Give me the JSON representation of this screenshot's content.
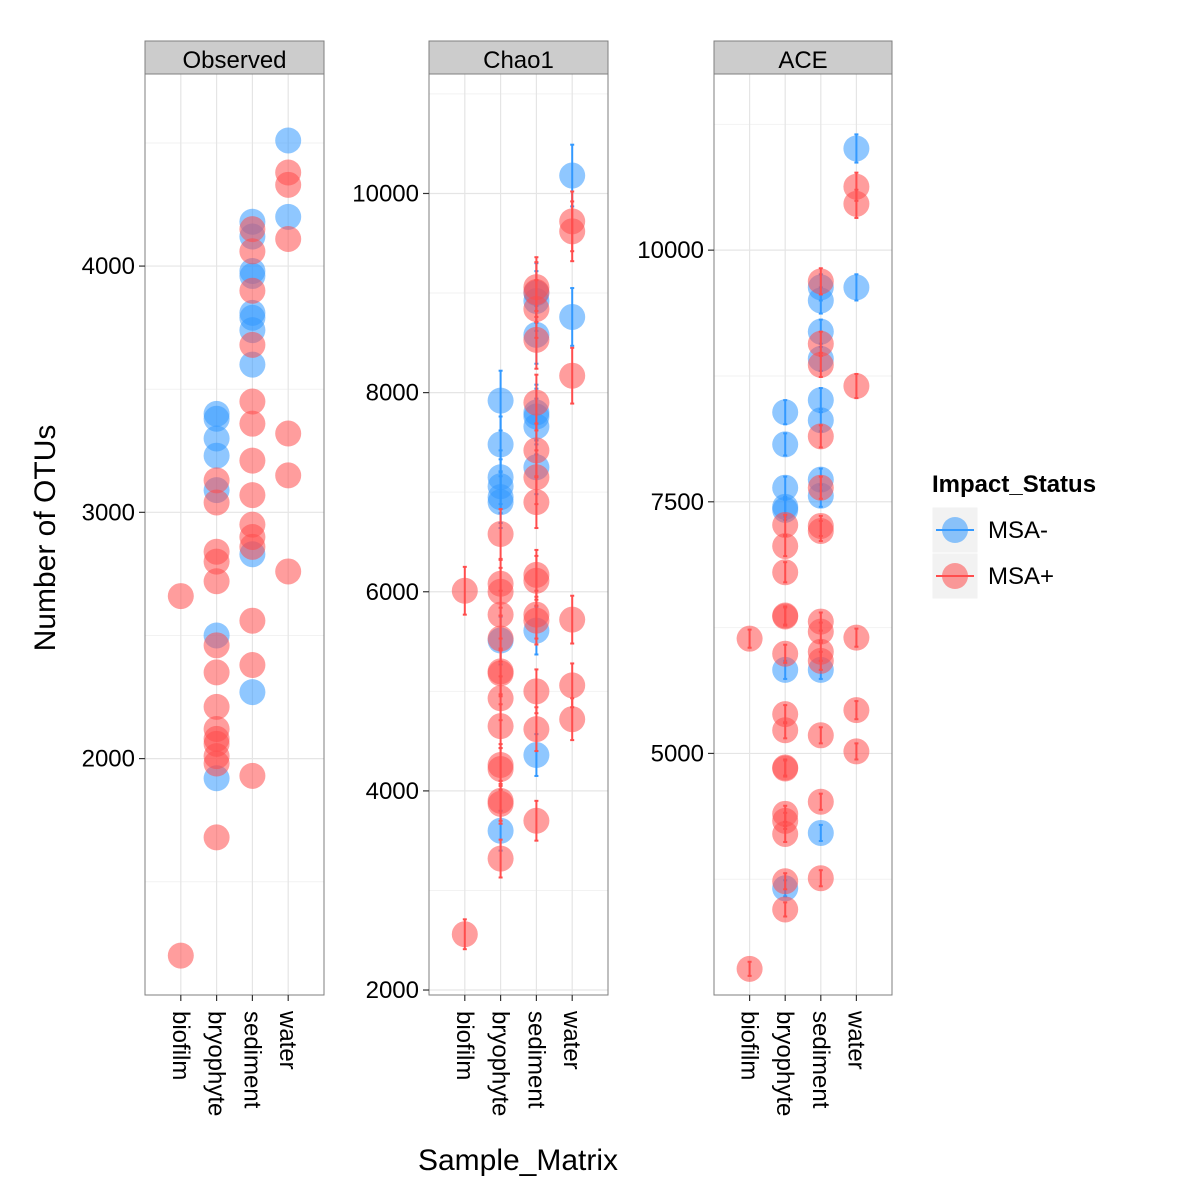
{
  "chart_data": {
    "type": "scatter",
    "xlabel": "Sample_Matrix",
    "ylabel": "Number of OTUs",
    "categories": [
      "biofilm",
      "bryophyte",
      "sediment",
      "water"
    ],
    "legend": {
      "title": "Impact_Status",
      "position": "right",
      "entries": [
        {
          "name": "MSA-",
          "color": "#3399FF"
        },
        {
          "name": "MSA+",
          "color": "#FF4D4D"
        }
      ]
    },
    "colors": {
      "MSA-": "#3399FF",
      "MSA+": "#FF4D4D"
    },
    "grid": true,
    "panels": [
      {
        "name": "Observed",
        "ylim": [
          1040,
          4780
        ],
        "yticks": [
          2000,
          3000,
          4000
        ],
        "ytick_labels": [
          "2000",
          "3000",
          "4000"
        ],
        "series": [
          {
            "name": "MSA-",
            "points": [
              [
                "bryophyte",
                3400
              ],
              [
                "bryophyte",
                3380
              ],
              [
                "bryophyte",
                3300
              ],
              [
                "bryophyte",
                3230
              ],
              [
                "bryophyte",
                3090
              ],
              [
                "bryophyte",
                2500
              ],
              [
                "bryophyte",
                1920
              ],
              [
                "sediment",
                4180
              ],
              [
                "sediment",
                4120
              ],
              [
                "sediment",
                3980
              ],
              [
                "sediment",
                3960
              ],
              [
                "sediment",
                3810
              ],
              [
                "sediment",
                3790
              ],
              [
                "sediment",
                3740
              ],
              [
                "sediment",
                3600
              ],
              [
                "sediment",
                2830
              ],
              [
                "sediment",
                2270
              ],
              [
                "water",
                4510
              ],
              [
                "water",
                4200
              ]
            ]
          },
          {
            "name": "MSA+",
            "points": [
              [
                "biofilm",
                2660
              ],
              [
                "biofilm",
                1200
              ],
              [
                "bryophyte",
                3130
              ],
              [
                "bryophyte",
                3040
              ],
              [
                "bryophyte",
                2840
              ],
              [
                "bryophyte",
                2800
              ],
              [
                "bryophyte",
                2720
              ],
              [
                "bryophyte",
                2460
              ],
              [
                "bryophyte",
                2350
              ],
              [
                "bryophyte",
                2210
              ],
              [
                "bryophyte",
                2120
              ],
              [
                "bryophyte",
                2080
              ],
              [
                "bryophyte",
                2060
              ],
              [
                "bryophyte",
                2010
              ],
              [
                "bryophyte",
                1980
              ],
              [
                "bryophyte",
                1680
              ],
              [
                "sediment",
                4150
              ],
              [
                "sediment",
                4060
              ],
              [
                "sediment",
                3900
              ],
              [
                "sediment",
                3680
              ],
              [
                "sediment",
                3450
              ],
              [
                "sediment",
                3360
              ],
              [
                "sediment",
                3210
              ],
              [
                "sediment",
                3070
              ],
              [
                "sediment",
                2950
              ],
              [
                "sediment",
                2900
              ],
              [
                "sediment",
                2860
              ],
              [
                "sediment",
                2560
              ],
              [
                "sediment",
                2380
              ],
              [
                "sediment",
                1930
              ],
              [
                "water",
                4380
              ],
              [
                "water",
                4330
              ],
              [
                "water",
                4110
              ],
              [
                "water",
                3320
              ],
              [
                "water",
                3150
              ],
              [
                "water",
                2760
              ]
            ]
          }
        ]
      },
      {
        "name": "Chao1",
        "ylim": [
          1950,
          11200
        ],
        "yticks": [
          2000,
          4000,
          6000,
          8000,
          10000
        ],
        "ytick_labels": [
          "2000",
          "4000",
          "6000",
          "8000",
          "10000"
        ],
        "series": [
          {
            "name": "MSA-",
            "points": [
              [
                "bryophyte",
                7920,
                300
              ],
              [
                "bryophyte",
                7480,
                280
              ],
              [
                "bryophyte",
                7150,
                270
              ],
              [
                "bryophyte",
                7060,
                270
              ],
              [
                "bryophyte",
                6950,
                260
              ],
              [
                "bryophyte",
                6900,
                260
              ],
              [
                "bryophyte",
                5510,
                240
              ],
              [
                "bryophyte",
                3600,
                200
              ],
              [
                "sediment",
                9000,
                300
              ],
              [
                "sediment",
                8920,
                300
              ],
              [
                "sediment",
                8580,
                290
              ],
              [
                "sediment",
                7800,
                280
              ],
              [
                "sediment",
                7760,
                280
              ],
              [
                "sediment",
                7660,
                280
              ],
              [
                "sediment",
                7250,
                270
              ],
              [
                "sediment",
                5610,
                240
              ],
              [
                "sediment",
                4360,
                210
              ],
              [
                "water",
                10180,
                310
              ],
              [
                "water",
                8760,
                290
              ]
            ]
          },
          {
            "name": "MSA+",
            "points": [
              [
                "biofilm",
                6010,
                240
              ],
              [
                "biofilm",
                2560,
                150
              ],
              [
                "bryophyte",
                6580,
                250
              ],
              [
                "bryophyte",
                6080,
                240
              ],
              [
                "bryophyte",
                6000,
                240
              ],
              [
                "bryophyte",
                5770,
                240
              ],
              [
                "bryophyte",
                5530,
                230
              ],
              [
                "bryophyte",
                5200,
                230
              ],
              [
                "bryophyte",
                5180,
                230
              ],
              [
                "bryophyte",
                4930,
                220
              ],
              [
                "bryophyte",
                4650,
                220
              ],
              [
                "bryophyte",
                4260,
                210
              ],
              [
                "bryophyte",
                4220,
                210
              ],
              [
                "bryophyte",
                3900,
                200
              ],
              [
                "bryophyte",
                3870,
                200
              ],
              [
                "bryophyte",
                3320,
                190
              ],
              [
                "sediment",
                9060,
                300
              ],
              [
                "sediment",
                9010,
                300
              ],
              [
                "sediment",
                8840,
                290
              ],
              [
                "sediment",
                8530,
                290
              ],
              [
                "sediment",
                7900,
                280
              ],
              [
                "sediment",
                7420,
                270
              ],
              [
                "sediment",
                7150,
                270
              ],
              [
                "sediment",
                6900,
                260
              ],
              [
                "sediment",
                6170,
                250
              ],
              [
                "sediment",
                6110,
                250
              ],
              [
                "sediment",
                5770,
                240
              ],
              [
                "sediment",
                5710,
                240
              ],
              [
                "sediment",
                5000,
                220
              ],
              [
                "sediment",
                4620,
                220
              ],
              [
                "sediment",
                3700,
                200
              ],
              [
                "water",
                9720,
                300
              ],
              [
                "water",
                9620,
                300
              ],
              [
                "water",
                8170,
                280
              ],
              [
                "water",
                5720,
                240
              ],
              [
                "water",
                5060,
                220
              ],
              [
                "water",
                4720,
                210
              ]
            ]
          }
        ]
      },
      {
        "name": "ACE",
        "ylim": [
          2600,
          11750
        ],
        "yticks": [
          5000,
          7500,
          10000
        ],
        "ytick_labels": [
          "5000",
          "7500",
          "10000"
        ],
        "series": [
          {
            "name": "MSA-",
            "points": [
              [
                "bryophyte",
                8390,
                120
              ],
              [
                "bryophyte",
                8070,
                110
              ],
              [
                "bryophyte",
                7640,
                110
              ],
              [
                "bryophyte",
                7450,
                100
              ],
              [
                "bryophyte",
                7420,
                100
              ],
              [
                "bryophyte",
                5830,
                90
              ],
              [
                "bryophyte",
                3660,
                80
              ],
              [
                "sediment",
                9630,
                130
              ],
              [
                "sediment",
                9500,
                130
              ],
              [
                "sediment",
                9190,
                120
              ],
              [
                "sediment",
                8920,
                120
              ],
              [
                "sediment",
                8510,
                120
              ],
              [
                "sediment",
                8310,
                110
              ],
              [
                "sediment",
                7720,
                110
              ],
              [
                "sediment",
                7560,
                110
              ],
              [
                "sediment",
                5830,
                90
              ],
              [
                "sediment",
                4210,
                80
              ],
              [
                "water",
                11010,
                140
              ],
              [
                "water",
                9630,
                130
              ]
            ]
          },
          {
            "name": "MSA+",
            "points": [
              [
                "biofilm",
                6140,
                90
              ],
              [
                "biofilm",
                2860,
                70
              ],
              [
                "bryophyte",
                7270,
                100
              ],
              [
                "bryophyte",
                7060,
                100
              ],
              [
                "bryophyte",
                6800,
                100
              ],
              [
                "bryophyte",
                6370,
                90
              ],
              [
                "bryophyte",
                6360,
                90
              ],
              [
                "bryophyte",
                5990,
                90
              ],
              [
                "bryophyte",
                5390,
                90
              ],
              [
                "bryophyte",
                5230,
                80
              ],
              [
                "bryophyte",
                4860,
                80
              ],
              [
                "bryophyte",
                4850,
                80
              ],
              [
                "bryophyte",
                4400,
                80
              ],
              [
                "bryophyte",
                4330,
                80
              ],
              [
                "bryophyte",
                4200,
                80
              ],
              [
                "bryophyte",
                3730,
                80
              ],
              [
                "bryophyte",
                3450,
                70
              ],
              [
                "sediment",
                9690,
                130
              ],
              [
                "sediment",
                9070,
                120
              ],
              [
                "sediment",
                8860,
                120
              ],
              [
                "sediment",
                8150,
                110
              ],
              [
                "sediment",
                7640,
                110
              ],
              [
                "sediment",
                7260,
                100
              ],
              [
                "sediment",
                7210,
                100
              ],
              [
                "sediment",
                6310,
                90
              ],
              [
                "sediment",
                6210,
                90
              ],
              [
                "sediment",
                6010,
                90
              ],
              [
                "sediment",
                5920,
                90
              ],
              [
                "sediment",
                5180,
                80
              ],
              [
                "sediment",
                4520,
                80
              ],
              [
                "sediment",
                3760,
                80
              ],
              [
                "water",
                10630,
                140
              ],
              [
                "water",
                10460,
                140
              ],
              [
                "water",
                8650,
                120
              ],
              [
                "water",
                6150,
                90
              ],
              [
                "water",
                5430,
                90
              ],
              [
                "water",
                5020,
                80
              ]
            ]
          }
        ]
      }
    ]
  }
}
